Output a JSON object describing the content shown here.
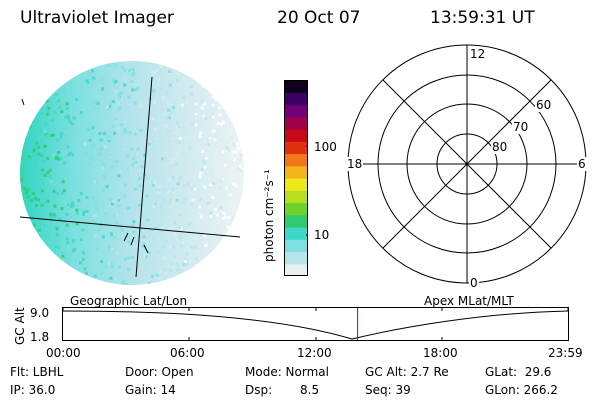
{
  "header": {
    "title": "Ultraviolet Imager",
    "date": "20 Oct 07",
    "time": "13:59:31 UT"
  },
  "colorbar": {
    "unit_label": "photon cm⁻²s⁻¹",
    "ticks": [
      "100",
      "10"
    ],
    "colors": [
      "#e8f0f0",
      "#b8e4ec",
      "#7ee0e0",
      "#3ed8c8",
      "#2ecc70",
      "#6ed22a",
      "#b8de1e",
      "#eae81a",
      "#f6b418",
      "#f07818",
      "#e03010",
      "#c80a18",
      "#a0004a",
      "#70007a",
      "#3a0060",
      "#100020"
    ]
  },
  "polar": {
    "labels": {
      "top": "12",
      "bottom": "0",
      "left": "18",
      "right": "6",
      "lat60": "60",
      "lat70": "70",
      "lat80": "80"
    }
  },
  "timeline": {
    "left_label": "Geographic Lat/Lon",
    "right_label": "Apex MLat/MLT",
    "axis_title": "GC Alt",
    "y_max": "9.0",
    "y_min": "1.8",
    "x_ticks": [
      "00:00",
      "06:00",
      "12:00",
      "18:00",
      "23:59"
    ],
    "current_time_hours": 14.0,
    "marker_color": "#c00000"
  },
  "info": {
    "flt": "Flt: LBHL",
    "door": "Door: Open",
    "mode": "Mode: Normal",
    "gc_alt": "GC Alt: 2.7 Re",
    "glat": "GLat:  29.6",
    "ip": "IP: 36.0",
    "gain": "Gain: 14",
    "dsp_label": "Dsp:",
    "dsp_value": "8.5",
    "seq": "Seq: 39",
    "glon": "GLon: 266.2"
  }
}
